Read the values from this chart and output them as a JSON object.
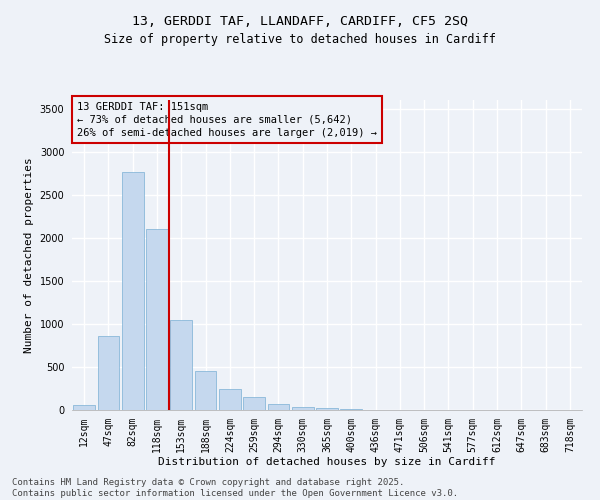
{
  "title_line1": "13, GERDDI TAF, LLANDAFF, CARDIFF, CF5 2SQ",
  "title_line2": "Size of property relative to detached houses in Cardiff",
  "xlabel": "Distribution of detached houses by size in Cardiff",
  "ylabel": "Number of detached properties",
  "categories": [
    "12sqm",
    "47sqm",
    "82sqm",
    "118sqm",
    "153sqm",
    "188sqm",
    "224sqm",
    "259sqm",
    "294sqm",
    "330sqm",
    "365sqm",
    "400sqm",
    "436sqm",
    "471sqm",
    "506sqm",
    "541sqm",
    "577sqm",
    "612sqm",
    "647sqm",
    "683sqm",
    "718sqm"
  ],
  "values": [
    55,
    860,
    2760,
    2100,
    1040,
    450,
    245,
    155,
    65,
    40,
    20,
    10,
    5,
    2,
    0,
    0,
    0,
    0,
    0,
    0,
    0
  ],
  "bar_color": "#c5d8ee",
  "bar_edge_color": "#7aafd4",
  "vline_color": "#cc0000",
  "annotation_text": "13 GERDDI TAF: 151sqm\n← 73% of detached houses are smaller (5,642)\n26% of semi-detached houses are larger (2,019) →",
  "annotation_box_color": "#cc0000",
  "ylim": [
    0,
    3600
  ],
  "yticks": [
    0,
    500,
    1000,
    1500,
    2000,
    2500,
    3000,
    3500
  ],
  "bg_color": "#eef2f8",
  "grid_color": "#ffffff",
  "footer_line1": "Contains HM Land Registry data © Crown copyright and database right 2025.",
  "footer_line2": "Contains public sector information licensed under the Open Government Licence v3.0.",
  "title_fontsize": 9.5,
  "subtitle_fontsize": 8.5,
  "annotation_fontsize": 7.5,
  "axis_label_fontsize": 8,
  "tick_fontsize": 7,
  "footer_fontsize": 6.5
}
